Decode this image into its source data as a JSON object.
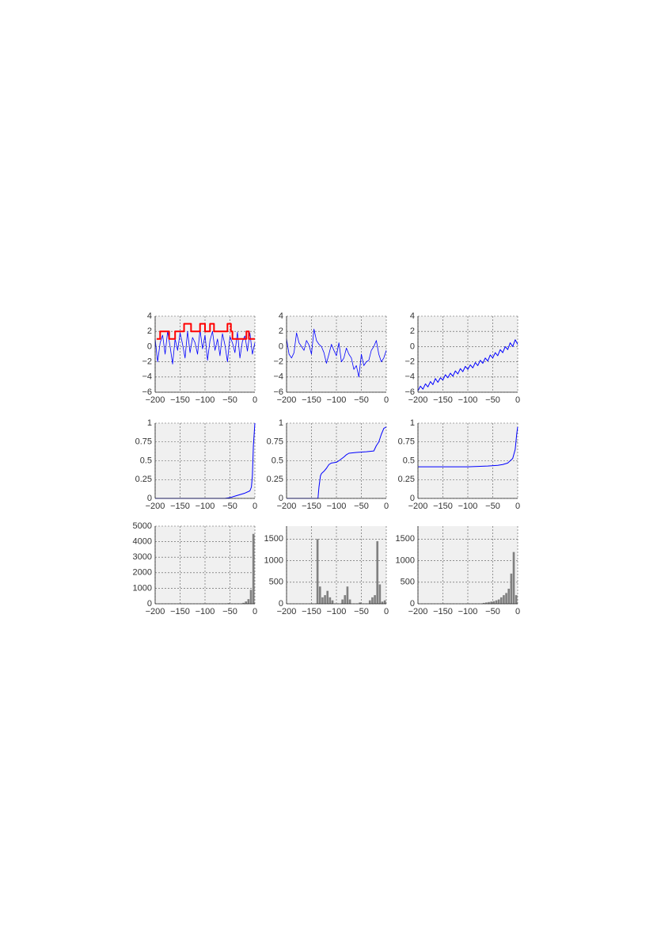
{
  "chart_data": [
    {
      "type": "line",
      "grid": true,
      "xlim": [
        -200,
        0
      ],
      "ylim": [
        -6,
        4
      ],
      "xticks": [
        {
          "value": -200,
          "label": "−200"
        },
        {
          "value": -150,
          "label": "−150"
        },
        {
          "value": -100,
          "label": "−100"
        },
        {
          "value": -50,
          "label": "−50"
        },
        0
      ],
      "yticks": [
        {
          "value": -6,
          "label": "−6"
        },
        {
          "value": -4,
          "label": "−4"
        },
        {
          "value": -2,
          "label": "−2"
        },
        0,
        2,
        4
      ],
      "series": [
        {
          "color": "#0000ff",
          "width": 0.8,
          "x": [
            -200,
            -195,
            -190,
            -185,
            -180,
            -175,
            -170,
            -165,
            -160,
            -155,
            -150,
            -145,
            -140,
            -135,
            -130,
            -125,
            -120,
            -115,
            -110,
            -105,
            -100,
            -95,
            -90,
            -85,
            -80,
            -75,
            -70,
            -65,
            -60,
            -55,
            -50,
            -45,
            -40,
            -35,
            -30,
            -25,
            -20,
            -15,
            -10,
            -5,
            0
          ],
          "values": [
            1,
            -2,
            0.5,
            1.5,
            -1,
            2,
            0,
            -2.3,
            1,
            -0.5,
            1.8,
            0.3,
            -1.5,
            2,
            -0.8,
            1.2,
            0.5,
            -1,
            2.2,
            -0.3,
            1.5,
            -1.8,
            0.8,
            2,
            -0.5,
            1,
            -1.2,
            1.7,
            0.2,
            -2,
            1.3,
            0.5,
            -0.8,
            1.9,
            -1.5,
            0.7,
            1.4,
            -0.6,
            1.8,
            -1,
            0.5
          ]
        },
        {
          "color": "#ff0000",
          "width": 2,
          "x": [
            -197,
            -190,
            -190,
            -172,
            -172,
            -160,
            -160,
            -142,
            -142,
            -128,
            -128,
            -110,
            -110,
            -100,
            -100,
            -90,
            -90,
            -82,
            -82,
            -55,
            -55,
            -48,
            -48,
            -45,
            -45,
            -17,
            -17,
            -12,
            -12,
            0
          ],
          "values": [
            1,
            1,
            2,
            2,
            1,
            1,
            2,
            2,
            3,
            3,
            2,
            2,
            3,
            3,
            2,
            2,
            3,
            3,
            2,
            2,
            3,
            3,
            2,
            2,
            1,
            1,
            2,
            2,
            1,
            1
          ]
        }
      ]
    },
    {
      "type": "line",
      "grid": true,
      "xlim": [
        -200,
        0
      ],
      "ylim": [
        -6,
        4
      ],
      "xticks": [
        {
          "value": -200,
          "label": "−200"
        },
        {
          "value": -150,
          "label": "−150"
        },
        {
          "value": -100,
          "label": "−100"
        },
        {
          "value": -50,
          "label": "−50"
        },
        0
      ],
      "yticks": [
        {
          "value": -6,
          "label": "−6"
        },
        {
          "value": -4,
          "label": "−4"
        },
        {
          "value": -2,
          "label": "−2"
        },
        0,
        2,
        4
      ],
      "series": [
        {
          "color": "#0000ff",
          "width": 0.8,
          "x": [
            -200,
            -195,
            -190,
            -185,
            -180,
            -175,
            -170,
            -165,
            -160,
            -155,
            -150,
            -145,
            -140,
            -135,
            -130,
            -125,
            -120,
            -115,
            -110,
            -105,
            -100,
            -95,
            -90,
            -85,
            -80,
            -75,
            -70,
            -65,
            -60,
            -55,
            -50,
            -45,
            -40,
            -35,
            -30,
            -25,
            -20,
            -15,
            -10,
            -5,
            0
          ],
          "values": [
            1,
            -1,
            -1.5,
            -0.8,
            1.8,
            0.5,
            0,
            -0.5,
            0.8,
            0.2,
            -1,
            2.3,
            0.8,
            0.3,
            0,
            -0.8,
            -2.2,
            -1,
            0.3,
            -0.5,
            -1.2,
            0.5,
            -2,
            -1.5,
            -0.2,
            -1,
            -1.5,
            -3,
            -2.5,
            -4,
            -1,
            -2.5,
            -2,
            -1.8,
            -0.5,
            0,
            0.8,
            -1,
            -2,
            -1.5,
            -0.5
          ]
        }
      ]
    },
    {
      "type": "line",
      "grid": true,
      "xlim": [
        -200,
        0
      ],
      "ylim": [
        -6,
        4
      ],
      "xticks": [
        {
          "value": -200,
          "label": "−200"
        },
        {
          "value": -150,
          "label": "−150"
        },
        {
          "value": -100,
          "label": "−100"
        },
        {
          "value": -50,
          "label": "−50"
        },
        0
      ],
      "yticks": [
        {
          "value": -6,
          "label": "−6"
        },
        {
          "value": -4,
          "label": "−4"
        },
        {
          "value": -2,
          "label": "−2"
        },
        0,
        2,
        4
      ],
      "series": [
        {
          "color": "#0000ff",
          "width": 1,
          "x": [
            -200,
            -195,
            -190,
            -185,
            -180,
            -175,
            -170,
            -165,
            -160,
            -155,
            -150,
            -145,
            -140,
            -135,
            -130,
            -125,
            -120,
            -115,
            -110,
            -105,
            -100,
            -95,
            -90,
            -85,
            -80,
            -75,
            -70,
            -65,
            -60,
            -55,
            -50,
            -45,
            -40,
            -35,
            -30,
            -25,
            -20,
            -15,
            -10,
            -5,
            0
          ],
          "values": [
            -5.8,
            -5.2,
            -5.6,
            -4.9,
            -5.3,
            -4.6,
            -5,
            -4.2,
            -4.7,
            -4.1,
            -4.4,
            -3.7,
            -4.1,
            -3.5,
            -3.9,
            -3.2,
            -3.6,
            -2.9,
            -3.3,
            -2.6,
            -3,
            -2.4,
            -2.8,
            -2.1,
            -2.5,
            -1.8,
            -2.2,
            -1.5,
            -1.9,
            -1.1,
            -1.5,
            -0.8,
            -1.2,
            -0.4,
            -0.8,
            0,
            -0.4,
            0.5,
            0,
            0.9,
            0.3
          ]
        }
      ]
    },
    {
      "type": "line",
      "grid": true,
      "xlim": [
        -200,
        0
      ],
      "ylim": [
        0,
        1
      ],
      "xticks": [
        {
          "value": -200,
          "label": "−200"
        },
        {
          "value": -150,
          "label": "−150"
        },
        {
          "value": -100,
          "label": "−100"
        },
        {
          "value": -50,
          "label": "−50"
        },
        0
      ],
      "yticks": [
        0,
        0.25,
        0.5,
        0.75,
        1
      ],
      "series": [
        {
          "color": "#0000ff",
          "width": 1,
          "x": [
            -200,
            -60,
            -50,
            -40,
            -30,
            -20,
            -10,
            -7,
            -5,
            -3,
            -1,
            0
          ],
          "values": [
            0,
            0,
            0.01,
            0.03,
            0.05,
            0.07,
            0.1,
            0.15,
            0.3,
            0.7,
            0.9,
            1
          ]
        }
      ]
    },
    {
      "type": "line",
      "grid": true,
      "xlim": [
        -200,
        0
      ],
      "ylim": [
        0,
        1
      ],
      "xticks": [
        {
          "value": -200,
          "label": "−200"
        },
        {
          "value": -150,
          "label": "−150"
        },
        {
          "value": -100,
          "label": "−100"
        },
        {
          "value": -50,
          "label": "−50"
        },
        0
      ],
      "yticks": [
        0,
        0.25,
        0.5,
        0.75,
        1
      ],
      "series": [
        {
          "color": "#0000ff",
          "width": 1,
          "x": [
            -200,
            -137,
            -135,
            -132,
            -130,
            -125,
            -120,
            -115,
            -110,
            -100,
            -95,
            -85,
            -80,
            -75,
            -60,
            -40,
            -25,
            -20,
            -15,
            -10,
            -5,
            0
          ],
          "values": [
            0,
            0,
            0.15,
            0.3,
            0.33,
            0.36,
            0.4,
            0.45,
            0.47,
            0.48,
            0.5,
            0.55,
            0.58,
            0.6,
            0.61,
            0.62,
            0.63,
            0.7,
            0.75,
            0.85,
            0.93,
            0.95
          ]
        }
      ]
    },
    {
      "type": "line",
      "grid": true,
      "xlim": [
        -200,
        0
      ],
      "ylim": [
        0,
        1
      ],
      "xticks": [
        {
          "value": -200,
          "label": "−200"
        },
        {
          "value": -150,
          "label": "−150"
        },
        {
          "value": -100,
          "label": "−100"
        },
        {
          "value": -50,
          "label": "−50"
        },
        0
      ],
      "yticks": [
        0,
        0.25,
        0.5,
        0.75,
        1
      ],
      "series": [
        {
          "color": "#0000ff",
          "width": 1,
          "x": [
            -200,
            -100,
            -80,
            -60,
            -40,
            -30,
            -20,
            -15,
            -10,
            -5,
            -2,
            0
          ],
          "values": [
            0.42,
            0.42,
            0.425,
            0.43,
            0.44,
            0.45,
            0.47,
            0.5,
            0.53,
            0.65,
            0.85,
            0.95
          ]
        }
      ]
    },
    {
      "type": "histogram",
      "grid": true,
      "color": "#808080",
      "xlim": [
        -200,
        0
      ],
      "ylim": [
        0,
        5000
      ],
      "xticks": [
        {
          "value": -200,
          "label": "−200"
        },
        {
          "value": -150,
          "label": "−150"
        },
        {
          "value": -100,
          "label": "−100"
        },
        {
          "value": -50,
          "label": "−50"
        },
        0
      ],
      "yticks": [
        0,
        1000,
        2000,
        3000,
        4000,
        5000
      ],
      "bins": [
        -200,
        -195,
        -190,
        -185,
        -180,
        -175,
        -170,
        -165,
        -160,
        -155,
        -150,
        -145,
        -140,
        -135,
        -130,
        -125,
        -120,
        -115,
        -110,
        -105,
        -100,
        -95,
        -90,
        -85,
        -80,
        -75,
        -70,
        -65,
        -60,
        -55,
        -50,
        -45,
        -40,
        -35,
        -30,
        -25,
        -20,
        -15,
        -10,
        -5,
        0
      ],
      "counts": [
        0,
        0,
        0,
        0,
        0,
        0,
        0,
        0,
        0,
        0,
        0,
        0,
        0,
        0,
        0,
        0,
        0,
        0,
        0,
        0,
        0,
        0,
        0,
        0,
        0,
        0,
        0,
        0,
        0,
        40,
        0,
        0,
        0,
        0,
        0,
        60,
        150,
        300,
        900,
        4500
      ]
    },
    {
      "type": "histogram",
      "grid": true,
      "color": "#808080",
      "xlim": [
        -200,
        0
      ],
      "ylim": [
        0,
        1800
      ],
      "xticks": [
        {
          "value": -200,
          "label": "−200"
        },
        {
          "value": -150,
          "label": "−150"
        },
        {
          "value": -100,
          "label": "−100"
        },
        {
          "value": -50,
          "label": "−50"
        },
        0
      ],
      "yticks": [
        0,
        500,
        1000,
        1500
      ],
      "bins": [
        -200,
        -195,
        -190,
        -185,
        -180,
        -175,
        -170,
        -165,
        -160,
        -155,
        -150,
        -145,
        -140,
        -135,
        -130,
        -125,
        -120,
        -115,
        -110,
        -105,
        -100,
        -95,
        -90,
        -85,
        -80,
        -75,
        -70,
        -65,
        -60,
        -55,
        -50,
        -45,
        -40,
        -35,
        -30,
        -25,
        -20,
        -15,
        -10,
        -5,
        0
      ],
      "counts": [
        0,
        0,
        0,
        0,
        0,
        0,
        0,
        0,
        0,
        0,
        0,
        0,
        1500,
        400,
        150,
        200,
        300,
        150,
        80,
        0,
        0,
        0,
        100,
        200,
        400,
        100,
        0,
        0,
        0,
        30,
        0,
        0,
        0,
        80,
        150,
        200,
        1450,
        450,
        50,
        80
      ]
    },
    {
      "type": "histogram",
      "grid": true,
      "color": "#808080",
      "xlim": [
        -200,
        0
      ],
      "ylim": [
        0,
        1800
      ],
      "xticks": [
        {
          "value": -200,
          "label": "−200"
        },
        {
          "value": -150,
          "label": "−150"
        },
        {
          "value": -100,
          "label": "−100"
        },
        {
          "value": -50,
          "label": "−50"
        },
        0
      ],
      "yticks": [
        0,
        500,
        1000,
        1500
      ],
      "bins": [
        -200,
        -195,
        -190,
        -185,
        -180,
        -175,
        -170,
        -165,
        -160,
        -155,
        -150,
        -145,
        -140,
        -135,
        -130,
        -125,
        -120,
        -115,
        -110,
        -105,
        -100,
        -95,
        -90,
        -85,
        -80,
        -75,
        -70,
        -65,
        -60,
        -55,
        -50,
        -45,
        -40,
        -35,
        -30,
        -25,
        -20,
        -15,
        -10,
        -5,
        0
      ],
      "counts": [
        0,
        0,
        0,
        0,
        0,
        0,
        0,
        0,
        0,
        0,
        0,
        0,
        0,
        0,
        0,
        0,
        0,
        0,
        0,
        0,
        0,
        0,
        0,
        0,
        0,
        0,
        20,
        30,
        40,
        50,
        60,
        80,
        100,
        150,
        200,
        250,
        350,
        700,
        1200,
        200
      ]
    }
  ]
}
